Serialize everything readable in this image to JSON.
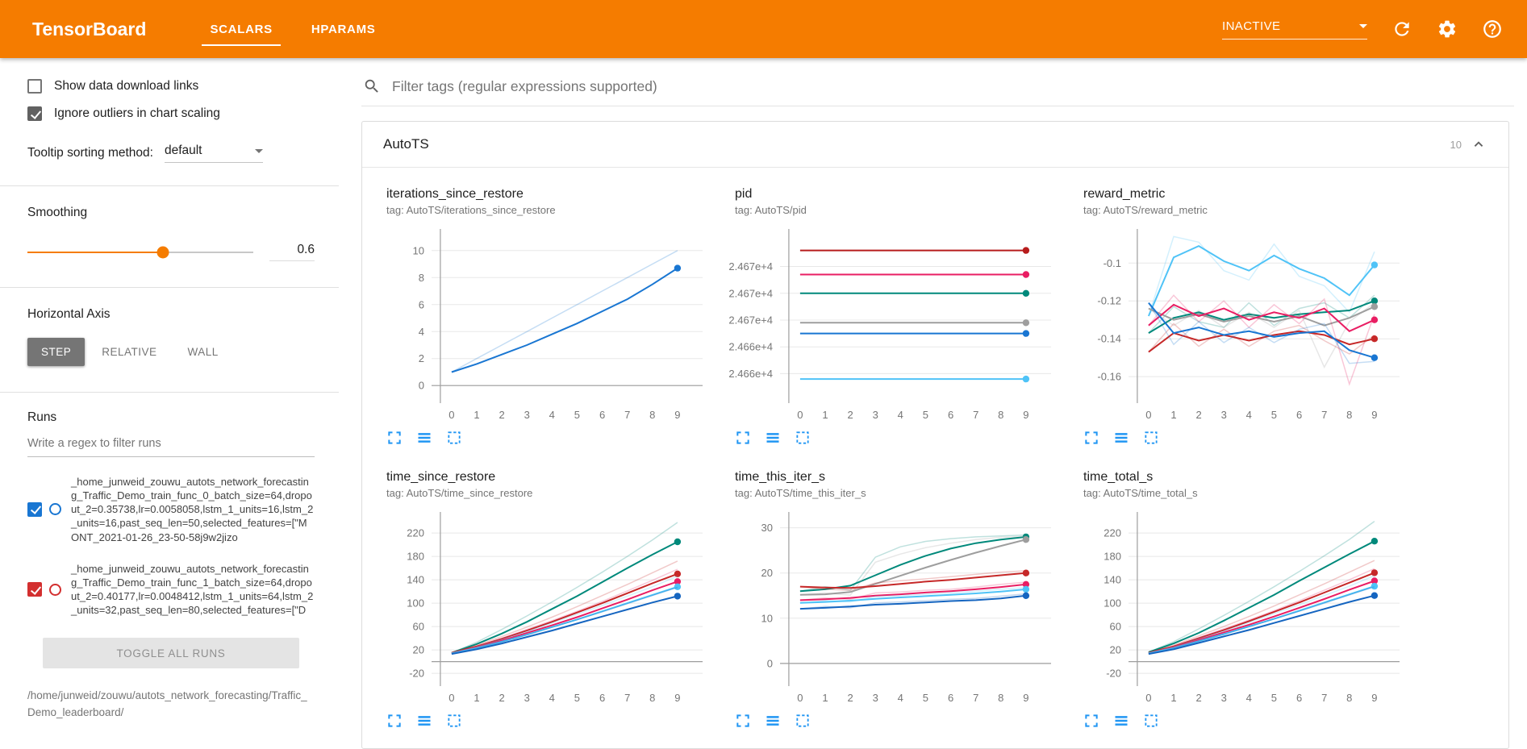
{
  "header": {
    "title": "TensorBoard",
    "tabs": [
      {
        "label": "SCALARS",
        "active": true
      },
      {
        "label": "HPARAMS",
        "active": false
      }
    ],
    "status": "INACTIVE"
  },
  "colors": {
    "header_bg": "#f57c00",
    "accent_orange": "#f57c00",
    "chart_action_blue": "#2196f3"
  },
  "sidebar": {
    "checkboxes": [
      {
        "label": "Show data download links",
        "checked": false
      },
      {
        "label": "Ignore outliers in chart scaling",
        "checked": true
      }
    ],
    "tooltip_sorting": {
      "label": "Tooltip sorting method:",
      "value": "default"
    },
    "smoothing": {
      "label": "Smoothing",
      "value": "0.6",
      "percent": 60
    },
    "horizontal_axis": {
      "label": "Horizontal Axis",
      "options": [
        "STEP",
        "RELATIVE",
        "WALL"
      ],
      "selected": "STEP"
    },
    "runs": {
      "label": "Runs",
      "filter_placeholder": "Write a regex to filter runs",
      "items": [
        {
          "name": "_home_junweid_zouwu_autots_network_forecasting_Traffic_Demo_train_func_0_batch_size=64,dropout_2=0.35738,lr=0.0058058,lstm_1_units=16,lstm_2_units=16,past_seq_len=50,selected_features=[\"MONT_2021-01-26_23-50-58j9w2jizo",
          "checked": true,
          "color": "#1976d2"
        },
        {
          "name": "_home_junweid_zouwu_autots_network_forecasting_Traffic_Demo_train_func_1_batch_size=64,dropout_2=0.40177,lr=0.0048412,lstm_1_units=64,lstm_2_units=32,past_seq_len=80,selected_features=[\"D",
          "checked": true,
          "color": "#d32f2f"
        }
      ],
      "toggle_all_label": "TOGGLE ALL RUNS"
    },
    "log_dir": "/home/junweid/zouwu/autots_network_forecasting/Traffic_Demo_leaderboard/"
  },
  "main": {
    "filter_placeholder": "Filter tags (regular expressions supported)",
    "section": {
      "title": "AutoTS",
      "count": "10"
    }
  },
  "chart_data": [
    {
      "type": "line",
      "title": "iterations_since_restore",
      "tag": "tag: AutoTS/iterations_since_restore",
      "x": [
        0,
        1,
        2,
        3,
        4,
        5,
        6,
        7,
        8,
        9
      ],
      "xticks": [
        0,
        1,
        2,
        3,
        4,
        5,
        6,
        7,
        8,
        9
      ],
      "ylim": [
        -1.3,
        11.6
      ],
      "yticks": [
        {
          "v": 0,
          "label": "0"
        },
        {
          "v": 2,
          "label": "2"
        },
        {
          "v": 4,
          "label": "4"
        },
        {
          "v": 6,
          "label": "6"
        },
        {
          "v": 8,
          "label": "8"
        },
        {
          "v": 10,
          "label": "10"
        }
      ],
      "series": [
        {
          "color": "#1976d2",
          "values": [
            1,
            1.6,
            2.3,
            3.0,
            3.8,
            4.6,
            5.5,
            6.4,
            7.5,
            8.7
          ],
          "raw": [
            1,
            2,
            3,
            4,
            5,
            6,
            7,
            8,
            9,
            10
          ]
        }
      ]
    },
    {
      "type": "line",
      "title": "pid",
      "tag": "tag: AutoTS/pid",
      "x": [
        0,
        1,
        2,
        3,
        4,
        5,
        6,
        7,
        8,
        9
      ],
      "xticks": [
        0,
        1,
        2,
        3,
        4,
        5,
        6,
        7,
        8,
        9
      ],
      "ylim": [
        24659.8,
        24672.8
      ],
      "yticks": [
        {
          "v": 24670,
          "label": "2.467e+4"
        },
        {
          "v": 24668,
          "label": "2.467e+4"
        },
        {
          "v": 24666,
          "label": "2.467e+4"
        },
        {
          "v": 24664,
          "label": "2.466e+4"
        },
        {
          "v": 24662,
          "label": "2.466e+4"
        }
      ],
      "series": [
        {
          "color": "#b71c1c",
          "values": [
            24671.2,
            24671.2,
            24671.2,
            24671.2,
            24671.2,
            24671.2,
            24671.2,
            24671.2,
            24671.2,
            24671.2
          ]
        },
        {
          "color": "#e91e63",
          "values": [
            24669.4,
            24669.4,
            24669.4,
            24669.4,
            24669.4,
            24669.4,
            24669.4,
            24669.4,
            24669.4,
            24669.4
          ]
        },
        {
          "color": "#00897b",
          "values": [
            24668.0,
            24668.0,
            24668.0,
            24668.0,
            24668.0,
            24668.0,
            24668.0,
            24668.0,
            24668.0,
            24668.0
          ]
        },
        {
          "color": "#9e9e9e",
          "values": [
            24665.8,
            24665.8,
            24665.8,
            24665.8,
            24665.8,
            24665.8,
            24665.8,
            24665.8,
            24665.8,
            24665.8
          ]
        },
        {
          "color": "#1976d2",
          "values": [
            24665.0,
            24665.0,
            24665.0,
            24665.0,
            24665.0,
            24665.0,
            24665.0,
            24665.0,
            24665.0,
            24665.0
          ]
        },
        {
          "color": "#4fc3f7",
          "values": [
            24661.6,
            24661.6,
            24661.6,
            24661.6,
            24661.6,
            24661.6,
            24661.6,
            24661.6,
            24661.6,
            24661.6
          ]
        }
      ]
    },
    {
      "type": "line",
      "title": "reward_metric",
      "tag": "tag: AutoTS/reward_metric",
      "x": [
        0,
        1,
        2,
        3,
        4,
        5,
        6,
        7,
        8,
        9
      ],
      "xticks": [
        0,
        1,
        2,
        3,
        4,
        5,
        6,
        7,
        8,
        9
      ],
      "ylim": [
        -0.174,
        -0.082
      ],
      "yticks": [
        {
          "v": -0.1,
          "label": "-0.1"
        },
        {
          "v": -0.12,
          "label": "-0.12"
        },
        {
          "v": -0.14,
          "label": "-0.14"
        },
        {
          "v": -0.16,
          "label": "-0.16"
        }
      ],
      "series": [
        {
          "color": "#4fc3f7",
          "values": [
            -0.128,
            -0.097,
            -0.091,
            -0.099,
            -0.104,
            -0.096,
            -0.103,
            -0.108,
            -0.117,
            -0.101
          ],
          "raw": [
            -0.128,
            -0.086,
            -0.089,
            -0.104,
            -0.109,
            -0.09,
            -0.107,
            -0.112,
            -0.126,
            -0.094
          ]
        },
        {
          "color": "#00897b",
          "values": [
            -0.137,
            -0.129,
            -0.126,
            -0.13,
            -0.127,
            -0.129,
            -0.127,
            -0.126,
            -0.125,
            -0.12
          ],
          "raw": [
            -0.137,
            -0.123,
            -0.131,
            -0.134,
            -0.121,
            -0.133,
            -0.124,
            -0.121,
            -0.129,
            -0.117
          ]
        },
        {
          "color": "#9e9e9e",
          "values": [
            -0.124,
            -0.13,
            -0.127,
            -0.131,
            -0.128,
            -0.131,
            -0.128,
            -0.133,
            -0.129,
            -0.123
          ],
          "raw": [
            -0.124,
            -0.133,
            -0.125,
            -0.134,
            -0.126,
            -0.134,
            -0.125,
            -0.155,
            -0.131,
            -0.121
          ]
        },
        {
          "color": "#e91e63",
          "values": [
            -0.133,
            -0.122,
            -0.128,
            -0.124,
            -0.13,
            -0.126,
            -0.129,
            -0.124,
            -0.136,
            -0.13
          ],
          "raw": [
            -0.133,
            -0.117,
            -0.131,
            -0.12,
            -0.134,
            -0.122,
            -0.132,
            -0.119,
            -0.164,
            -0.127
          ]
        },
        {
          "color": "#c62828",
          "values": [
            -0.147,
            -0.137,
            -0.141,
            -0.138,
            -0.141,
            -0.138,
            -0.136,
            -0.138,
            -0.143,
            -0.14
          ],
          "raw": [
            -0.147,
            -0.132,
            -0.144,
            -0.135,
            -0.144,
            -0.136,
            -0.133,
            -0.141,
            -0.148,
            -0.138
          ]
        },
        {
          "color": "#1976d2",
          "values": [
            -0.121,
            -0.137,
            -0.134,
            -0.138,
            -0.136,
            -0.139,
            -0.137,
            -0.136,
            -0.146,
            -0.15
          ],
          "raw": [
            -0.121,
            -0.143,
            -0.131,
            -0.142,
            -0.134,
            -0.142,
            -0.135,
            -0.132,
            -0.153,
            -0.152
          ]
        }
      ]
    },
    {
      "type": "line",
      "title": "time_since_restore",
      "tag": "tag: AutoTS/time_since_restore",
      "x": [
        0,
        1,
        2,
        3,
        4,
        5,
        6,
        7,
        8,
        9
      ],
      "xticks": [
        0,
        1,
        2,
        3,
        4,
        5,
        6,
        7,
        8,
        9
      ],
      "ylim": [
        -42,
        256
      ],
      "yticks": [
        {
          "v": -20,
          "label": "-20"
        },
        {
          "v": 20,
          "label": "20"
        },
        {
          "v": 60,
          "label": "60"
        },
        {
          "v": 100,
          "label": "100"
        },
        {
          "v": 140,
          "label": "140"
        },
        {
          "v": 180,
          "label": "180"
        },
        {
          "v": 220,
          "label": "220"
        }
      ],
      "series": [
        {
          "color": "#00897b",
          "values": [
            15,
            30,
            48,
            68,
            90,
            112,
            136,
            160,
            183,
            205
          ],
          "raw": [
            15,
            33,
            55,
            78,
            102,
            127,
            153,
            180,
            208,
            238
          ]
        },
        {
          "color": "#c62828",
          "values": [
            15,
            26,
            39,
            53,
            68,
            84,
            100,
            117,
            134,
            150
          ],
          "raw": [
            15,
            28,
            43,
            59,
            76,
            94,
            113,
            132,
            152,
            172
          ]
        },
        {
          "color": "#e91e63",
          "values": [
            14,
            24,
            36,
            49,
            62,
            76,
            91,
            106,
            122,
            137
          ],
          "raw": [
            14,
            26,
            40,
            55,
            70,
            86,
            103,
            121,
            139,
            158
          ]
        },
        {
          "color": "#4fc3f7",
          "values": [
            14,
            23,
            34,
            46,
            59,
            72,
            86,
            100,
            114,
            128
          ],
          "raw": [
            14,
            25,
            38,
            51,
            66,
            81,
            96,
            112,
            128,
            146
          ]
        },
        {
          "color": "#1565c0",
          "values": [
            13,
            21,
            31,
            42,
            53,
            65,
            77,
            89,
            101,
            112
          ],
          "raw": [
            13,
            23,
            34,
            46,
            59,
            72,
            85,
            99,
            113,
            127
          ]
        }
      ]
    },
    {
      "type": "line",
      "title": "time_this_iter_s",
      "tag": "tag: AutoTS/time_this_iter_s",
      "x": [
        0,
        1,
        2,
        3,
        4,
        5,
        6,
        7,
        8,
        9
      ],
      "xticks": [
        0,
        1,
        2,
        3,
        4,
        5,
        6,
        7,
        8,
        9
      ],
      "ylim": [
        -5,
        33.5
      ],
      "yticks": [
        {
          "v": 0,
          "label": "0"
        },
        {
          "v": 10,
          "label": "10"
        },
        {
          "v": 20,
          "label": "20"
        },
        {
          "v": 30,
          "label": "30"
        }
      ],
      "series": [
        {
          "color": "#00897b",
          "values": [
            16,
            16.4,
            17.2,
            19.5,
            21.8,
            23.8,
            25.4,
            26.6,
            27.4,
            28
          ],
          "raw": [
            16,
            17,
            16.2,
            23.5,
            25.8,
            27,
            27.6,
            28,
            28.2,
            28.4
          ]
        },
        {
          "color": "#9e9e9e",
          "values": [
            15.2,
            15.3,
            15.8,
            17.6,
            19.4,
            21.2,
            22.9,
            24.5,
            26,
            27.4
          ],
          "raw": [
            15.2,
            15.6,
            15.1,
            22.4,
            24.2,
            25.6,
            26.6,
            27.4,
            27.9,
            28.1
          ]
        },
        {
          "color": "#c62828",
          "values": [
            17,
            16.8,
            16.7,
            17.1,
            17.6,
            18.1,
            18.5,
            19,
            19.5,
            20
          ],
          "raw": [
            17,
            16.4,
            16.2,
            17.8,
            18.3,
            18.7,
            19.2,
            19.7,
            20.2,
            20.5
          ]
        },
        {
          "color": "#e91e63",
          "values": [
            14,
            14.2,
            14.5,
            15,
            15.3,
            15.7,
            16,
            16.4,
            16.9,
            17.5
          ],
          "raw": [
            14,
            14.5,
            14.2,
            15.6,
            15.8,
            16.2,
            16.4,
            16.9,
            17.5,
            18
          ]
        },
        {
          "color": "#4fc3f7",
          "values": [
            13.4,
            13.6,
            13.9,
            14.3,
            14.6,
            14.9,
            15.2,
            15.5,
            15.9,
            16.4
          ],
          "raw": [
            13.4,
            13.9,
            13.6,
            14.8,
            15,
            15.3,
            15.6,
            16,
            16.4,
            16.8
          ]
        },
        {
          "color": "#1565c0",
          "values": [
            12.1,
            12.3,
            12.6,
            13,
            13.2,
            13.5,
            13.8,
            14,
            14.4,
            15
          ],
          "raw": [
            12.1,
            12.6,
            12.3,
            13.4,
            13.6,
            13.9,
            14.2,
            14.4,
            14.9,
            15.4
          ]
        }
      ]
    },
    {
      "type": "line",
      "title": "time_total_s",
      "tag": "tag: AutoTS/time_total_s",
      "x": [
        0,
        1,
        2,
        3,
        4,
        5,
        6,
        7,
        8,
        9
      ],
      "xticks": [
        0,
        1,
        2,
        3,
        4,
        5,
        6,
        7,
        8,
        9
      ],
      "ylim": [
        -42,
        256
      ],
      "yticks": [
        {
          "v": -20,
          "label": "-20"
        },
        {
          "v": 20,
          "label": "20"
        },
        {
          "v": 60,
          "label": "60"
        },
        {
          "v": 100,
          "label": "100"
        },
        {
          "v": 140,
          "label": "140"
        },
        {
          "v": 180,
          "label": "180"
        },
        {
          "v": 220,
          "label": "220"
        }
      ],
      "series": [
        {
          "color": "#00897b",
          "values": [
            16,
            31,
            49,
            70,
            92,
            114,
            138,
            161,
            184,
            206
          ],
          "raw": [
            16,
            34,
            56,
            79,
            103,
            128,
            154,
            181,
            209,
            240
          ]
        },
        {
          "color": "#c62828",
          "values": [
            15,
            26,
            40,
            54,
            69,
            85,
            101,
            118,
            135,
            152
          ],
          "raw": [
            15,
            28,
            44,
            60,
            77,
            95,
            114,
            133,
            153,
            173
          ]
        },
        {
          "color": "#e91e63",
          "values": [
            14,
            24,
            37,
            50,
            63,
            77,
            92,
            107,
            123,
            138
          ],
          "raw": [
            14,
            26,
            41,
            56,
            71,
            87,
            104,
            122,
            140,
            159
          ]
        },
        {
          "color": "#4fc3f7",
          "values": [
            14,
            23,
            35,
            47,
            60,
            73,
            87,
            101,
            115,
            129
          ],
          "raw": [
            14,
            25,
            39,
            52,
            67,
            82,
            97,
            113,
            129,
            147
          ]
        },
        {
          "color": "#1565c0",
          "values": [
            13,
            21,
            32,
            43,
            54,
            66,
            78,
            90,
            102,
            113
          ],
          "raw": [
            13,
            23,
            35,
            47,
            60,
            73,
            86,
            100,
            114,
            128
          ]
        }
      ]
    }
  ]
}
